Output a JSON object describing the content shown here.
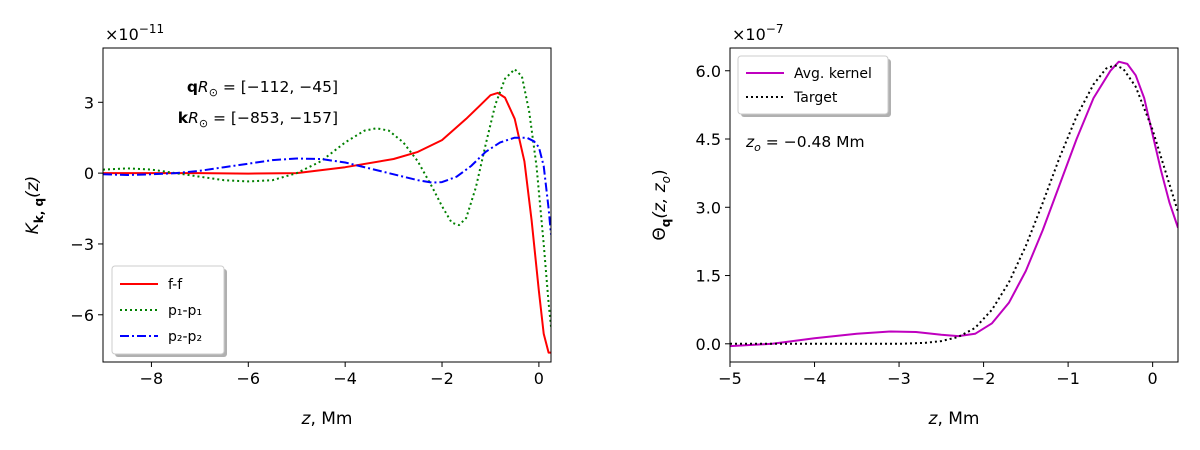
{
  "chart_data": [
    {
      "type": "line",
      "multiplier": "×10",
      "multiplier_exp": "−11",
      "xlabel": "z",
      "xlabel_unit": ", Mm",
      "ylabel": "K",
      "ylabel_sub": "k, q",
      "ylabel_arg": "(z)",
      "xlim": [
        -9,
        0.25
      ],
      "ylim": [
        -8.0,
        5.3
      ],
      "xticks": [
        -8,
        -6,
        -4,
        -2,
        0
      ],
      "xtick_labels": [
        "−8",
        "−6",
        "−4",
        "−2",
        "0"
      ],
      "yticks": [
        3,
        0,
        -3,
        -6
      ],
      "ytick_labels": [
        "3",
        "0",
        "−3",
        "−6"
      ],
      "annotations": [
        {
          "bold": "q",
          "italic": "R",
          "sub": "⊙",
          "rest": " = [−112, −45]"
        },
        {
          "bold": "k",
          "italic": "R",
          "sub": "⊙",
          "rest": " = [−853, −157]"
        }
      ],
      "legend_position": "lower-left",
      "series": [
        {
          "name": "f-f",
          "color": "#ff0000",
          "dash": "solid",
          "points": [
            [
              -9,
              0.0
            ],
            [
              -8,
              0.0
            ],
            [
              -7,
              0.0
            ],
            [
              -6,
              -0.02
            ],
            [
              -5,
              0.0
            ],
            [
              -4,
              0.25
            ],
            [
              -3,
              0.6
            ],
            [
              -2.5,
              0.9
            ],
            [
              -2,
              1.4
            ],
            [
              -1.5,
              2.3
            ],
            [
              -1.2,
              2.9
            ],
            [
              -1.0,
              3.3
            ],
            [
              -0.85,
              3.4
            ],
            [
              -0.7,
              3.2
            ],
            [
              -0.5,
              2.3
            ],
            [
              -0.3,
              0.5
            ],
            [
              -0.15,
              -2.0
            ],
            [
              0.0,
              -5.0
            ],
            [
              0.1,
              -6.8
            ],
            [
              0.2,
              -7.6
            ],
            [
              0.25,
              -7.6
            ]
          ]
        },
        {
          "name": "p₁-p₁",
          "color": "#008000",
          "dash": "dotted",
          "points": [
            [
              -9,
              0.15
            ],
            [
              -8.5,
              0.2
            ],
            [
              -8,
              0.15
            ],
            [
              -7.5,
              0.0
            ],
            [
              -7,
              -0.15
            ],
            [
              -6.5,
              -0.3
            ],
            [
              -6,
              -0.35
            ],
            [
              -5.5,
              -0.3
            ],
            [
              -5,
              0.0
            ],
            [
              -4.5,
              0.5
            ],
            [
              -4,
              1.3
            ],
            [
              -3.6,
              1.8
            ],
            [
              -3.35,
              1.9
            ],
            [
              -3.1,
              1.8
            ],
            [
              -2.8,
              1.3
            ],
            [
              -2.5,
              0.5
            ],
            [
              -2.2,
              -0.6
            ],
            [
              -2.0,
              -1.4
            ],
            [
              -1.8,
              -2.1
            ],
            [
              -1.65,
              -2.2
            ],
            [
              -1.5,
              -1.9
            ],
            [
              -1.3,
              -0.6
            ],
            [
              -1.1,
              1.2
            ],
            [
              -0.9,
              2.9
            ],
            [
              -0.7,
              4.0
            ],
            [
              -0.5,
              4.4
            ],
            [
              -0.35,
              4.1
            ],
            [
              -0.2,
              2.6
            ],
            [
              -0.05,
              0.3
            ],
            [
              0.1,
              -3.0
            ],
            [
              0.2,
              -5.5
            ],
            [
              0.25,
              -6.5
            ]
          ]
        },
        {
          "name": "p₂-p₂",
          "color": "#0000ff",
          "dash": "dashdot",
          "points": [
            [
              -9,
              -0.05
            ],
            [
              -8.5,
              -0.08
            ],
            [
              -8,
              -0.05
            ],
            [
              -7.5,
              0.0
            ],
            [
              -7,
              0.1
            ],
            [
              -6.5,
              0.25
            ],
            [
              -6,
              0.4
            ],
            [
              -5.5,
              0.55
            ],
            [
              -5,
              0.62
            ],
            [
              -4.5,
              0.6
            ],
            [
              -4,
              0.45
            ],
            [
              -3.5,
              0.2
            ],
            [
              -3,
              -0.05
            ],
            [
              -2.5,
              -0.3
            ],
            [
              -2.2,
              -0.4
            ],
            [
              -2.0,
              -0.38
            ],
            [
              -1.7,
              -0.15
            ],
            [
              -1.4,
              0.3
            ],
            [
              -1.1,
              0.9
            ],
            [
              -0.8,
              1.3
            ],
            [
              -0.5,
              1.5
            ],
            [
              -0.25,
              1.5
            ],
            [
              -0.1,
              1.35
            ],
            [
              0.0,
              1.1
            ],
            [
              0.1,
              0.3
            ],
            [
              0.2,
              -1.5
            ],
            [
              0.25,
              -2.6
            ]
          ]
        }
      ]
    },
    {
      "type": "line",
      "multiplier": "×10",
      "multiplier_exp": "−7",
      "xlabel": "z",
      "xlabel_unit": ", Mm",
      "ylabel": "Θ",
      "ylabel_sub": "q",
      "ylabel_arg": "(z, z",
      "ylabel_arg_sub": "o",
      "ylabel_arg_end": ")",
      "xlim": [
        -5,
        0.3
      ],
      "ylim": [
        -0.4,
        6.5
      ],
      "xticks": [
        -5,
        -4,
        -3,
        -2,
        -1,
        0
      ],
      "xtick_labels": [
        "−5",
        "−4",
        "−3",
        "−2",
        "−1",
        "0"
      ],
      "yticks": [
        0,
        1.5,
        3.0,
        4.5,
        6.0
      ],
      "ytick_labels": [
        "0.0",
        "1.5",
        "3.0",
        "4.5",
        "6.0"
      ],
      "annotation": {
        "italic": "z",
        "sub": "o",
        "rest": " = −0.48 Mm"
      },
      "legend_position": "upper-left",
      "series": [
        {
          "name": "Avg. kernel",
          "color": "#bf00bf",
          "dash": "solid",
          "points": [
            [
              -5,
              -0.05
            ],
            [
              -4.5,
              0.0
            ],
            [
              -4,
              0.12
            ],
            [
              -3.5,
              0.22
            ],
            [
              -3.1,
              0.27
            ],
            [
              -2.8,
              0.26
            ],
            [
              -2.5,
              0.2
            ],
            [
              -2.3,
              0.17
            ],
            [
              -2.1,
              0.22
            ],
            [
              -1.9,
              0.45
            ],
            [
              -1.7,
              0.9
            ],
            [
              -1.5,
              1.6
            ],
            [
              -1.3,
              2.5
            ],
            [
              -1.1,
              3.5
            ],
            [
              -0.9,
              4.5
            ],
            [
              -0.7,
              5.4
            ],
            [
              -0.5,
              6.0
            ],
            [
              -0.4,
              6.2
            ],
            [
              -0.3,
              6.15
            ],
            [
              -0.2,
              5.9
            ],
            [
              -0.1,
              5.4
            ],
            [
              0.0,
              4.6
            ],
            [
              0.1,
              3.8
            ],
            [
              0.2,
              3.1
            ],
            [
              0.3,
              2.55
            ]
          ]
        },
        {
          "name": "Target",
          "color": "#000000",
          "dash": "dotted",
          "points": [
            [
              -5,
              0.0
            ],
            [
              -4.5,
              0.0
            ],
            [
              -4,
              0.0
            ],
            [
              -3.5,
              0.0
            ],
            [
              -3.0,
              0.0
            ],
            [
              -2.7,
              0.02
            ],
            [
              -2.5,
              0.06
            ],
            [
              -2.3,
              0.15
            ],
            [
              -2.1,
              0.35
            ],
            [
              -1.9,
              0.75
            ],
            [
              -1.7,
              1.35
            ],
            [
              -1.5,
              2.15
            ],
            [
              -1.3,
              3.1
            ],
            [
              -1.1,
              4.1
            ],
            [
              -0.9,
              5.0
            ],
            [
              -0.7,
              5.7
            ],
            [
              -0.55,
              6.05
            ],
            [
              -0.45,
              6.12
            ],
            [
              -0.35,
              6.05
            ],
            [
              -0.2,
              5.65
            ],
            [
              0.0,
              4.7
            ],
            [
              0.15,
              3.8
            ],
            [
              0.3,
              2.9
            ]
          ]
        }
      ]
    }
  ]
}
